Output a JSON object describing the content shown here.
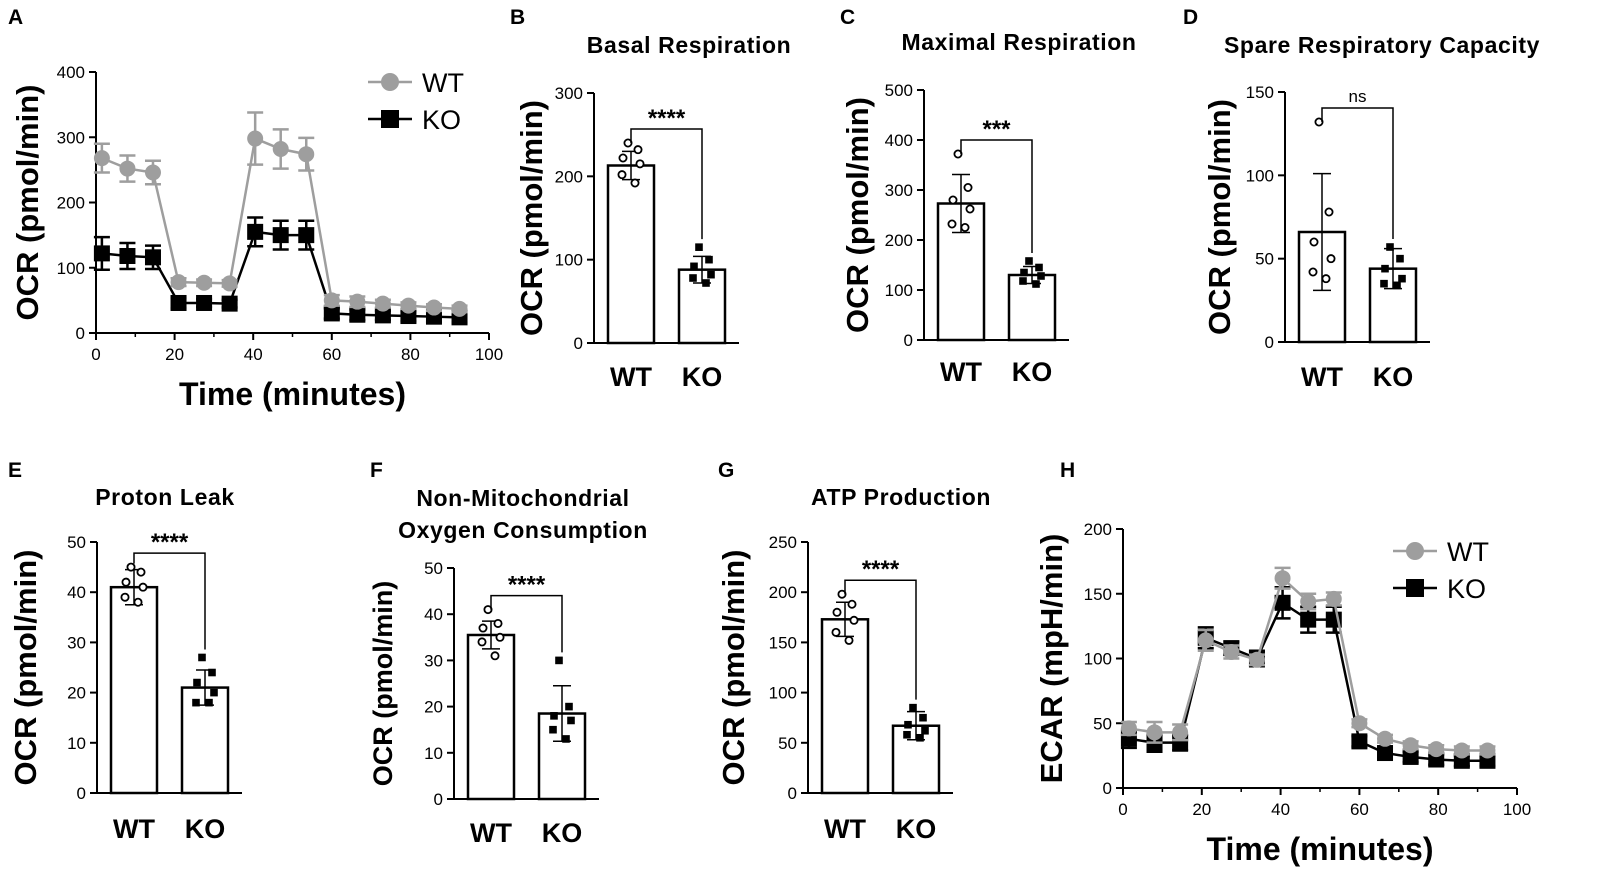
{
  "figure": {
    "colors": {
      "wt": "#9e9e9e",
      "ko": "#000000",
      "bar_fill": "#ffffff",
      "axis": "#000000"
    },
    "panels": {
      "A": "A",
      "B": "B",
      "C": "C",
      "D": "D",
      "E": "E",
      "F": "F",
      "G": "G",
      "H": "H"
    }
  },
  "chart_data": [
    {
      "id": "A",
      "type": "line",
      "title": "",
      "xlabel": "Time (minutes)",
      "ylabel": "OCR (pmol/min)",
      "xlim": [
        0,
        100
      ],
      "ylim": [
        0,
        400
      ],
      "xticks": [
        0,
        20,
        40,
        60,
        80,
        100
      ],
      "yticks": [
        0,
        100,
        200,
        300,
        400
      ],
      "legend": "top-right",
      "series": [
        {
          "name": "WT",
          "x": [
            1.5,
            8,
            14.5,
            21,
            27.5,
            34,
            40.5,
            47,
            53.5,
            60,
            66.5,
            73,
            79.5,
            86,
            92.5
          ],
          "y": [
            268,
            252,
            246,
            78,
            77,
            76,
            298,
            282,
            274,
            50,
            48,
            45,
            42,
            39,
            37
          ],
          "err": [
            22,
            20,
            18,
            6,
            5,
            5,
            40,
            30,
            25,
            8,
            8,
            6,
            5,
            5,
            5
          ]
        },
        {
          "name": "KO",
          "x": [
            1.5,
            8,
            14.5,
            21,
            27.5,
            34,
            40.5,
            47,
            53.5,
            60,
            66.5,
            73,
            79.5,
            86,
            92.5
          ],
          "y": [
            122,
            118,
            116,
            46,
            46,
            45,
            155,
            150,
            150,
            30,
            28,
            27,
            26,
            25,
            24
          ],
          "err": [
            25,
            20,
            18,
            8,
            6,
            6,
            22,
            22,
            22,
            8,
            8,
            7,
            8,
            8,
            8
          ]
        }
      ]
    },
    {
      "id": "B",
      "type": "bar",
      "title": "Basal Respiration",
      "ylabel": "OCR (pmol/min)",
      "ylim": [
        0,
        300
      ],
      "yticks": [
        0,
        100,
        200,
        300
      ],
      "categories": [
        "WT",
        "KO"
      ],
      "values": [
        213,
        88
      ],
      "errors": [
        17,
        16
      ],
      "points": [
        [
          240,
          232,
          222,
          215,
          202,
          192
        ],
        [
          115,
          100,
          92,
          82,
          78,
          72
        ]
      ],
      "significance": "****"
    },
    {
      "id": "C",
      "type": "bar",
      "title": "Maximal Respiration",
      "ylabel": "OCR (pmol/min)",
      "ylim": [
        0,
        500
      ],
      "yticks": [
        0,
        100,
        200,
        300,
        400,
        500
      ],
      "categories": [
        "WT",
        "KO"
      ],
      "values": [
        273,
        130
      ],
      "errors": [
        58,
        17
      ],
      "points": [
        [
          372,
          305,
          280,
          262,
          232,
          225
        ],
        [
          158,
          145,
          135,
          128,
          118,
          112
        ]
      ],
      "significance": "***"
    },
    {
      "id": "D",
      "type": "bar",
      "title": "Spare Respiratory Capacity",
      "ylabel": "OCR (pmol/min)",
      "ylim": [
        0,
        150
      ],
      "yticks": [
        0,
        50,
        100,
        150
      ],
      "categories": [
        "WT",
        "KO"
      ],
      "values": [
        66,
        44
      ],
      "errors": [
        35,
        12
      ],
      "points": [
        [
          132,
          78,
          60,
          50,
          42,
          38
        ],
        [
          57,
          50,
          44,
          38,
          35,
          34
        ]
      ],
      "significance": "ns"
    },
    {
      "id": "E",
      "type": "bar",
      "title": "Proton Leak",
      "ylabel": "OCR (pmol/min)",
      "ylim": [
        0,
        50
      ],
      "yticks": [
        0,
        10,
        20,
        30,
        40,
        50
      ],
      "categories": [
        "WT",
        "KO"
      ],
      "values": [
        41,
        21
      ],
      "errors": [
        3.5,
        3.5
      ],
      "points": [
        [
          45,
          44,
          42,
          41,
          39,
          38
        ],
        [
          27,
          24,
          22,
          20,
          18,
          18
        ]
      ],
      "significance": "****"
    },
    {
      "id": "F",
      "type": "bar",
      "title": "Non-Mitochondrial Oxygen Consumption",
      "title_lines": [
        "Non-Mitochondrial",
        "Oxygen Consumption"
      ],
      "ylabel": "OCR (pmol/min)",
      "ylim": [
        0,
        50
      ],
      "yticks": [
        0,
        10,
        20,
        30,
        40,
        50
      ],
      "categories": [
        "WT",
        "KO"
      ],
      "values": [
        35.5,
        18.5
      ],
      "errors": [
        3,
        6
      ],
      "points": [
        [
          41,
          38,
          37,
          35,
          34,
          31
        ],
        [
          30,
          20,
          18,
          17,
          15,
          13
        ]
      ],
      "significance": "****"
    },
    {
      "id": "G",
      "type": "bar",
      "title": "ATP Production",
      "ylabel": "OCR (pmol/min)",
      "ylim": [
        0,
        250
      ],
      "yticks": [
        0,
        50,
        100,
        150,
        200,
        250
      ],
      "categories": [
        "WT",
        "KO"
      ],
      "values": [
        173,
        67
      ],
      "errors": [
        17,
        14
      ],
      "points": [
        [
          198,
          188,
          180,
          172,
          160,
          152
        ],
        [
          85,
          75,
          68,
          62,
          58,
          55
        ]
      ],
      "significance": "****"
    },
    {
      "id": "H",
      "type": "line",
      "title": "",
      "xlabel": "Time (minutes)",
      "ylabel": "ECAR (mpH/min)",
      "xlim": [
        0,
        100
      ],
      "ylim": [
        0,
        200
      ],
      "xticks": [
        0,
        20,
        40,
        60,
        80,
        100
      ],
      "yticks": [
        0,
        50,
        100,
        150,
        200
      ],
      "legend": "top-right",
      "series": [
        {
          "name": "WT",
          "x": [
            1.5,
            8,
            14.5,
            21,
            27.5,
            34,
            40.5,
            47,
            53.5,
            60,
            66.5,
            73,
            79.5,
            86,
            92.5
          ],
          "y": [
            46,
            43,
            43,
            114,
            105,
            99,
            162,
            144,
            146,
            50,
            38,
            33,
            30,
            29,
            29
          ],
          "err": [
            5,
            8,
            6,
            8,
            5,
            4,
            8,
            6,
            5,
            3,
            3,
            3,
            3,
            3,
            3
          ]
        },
        {
          "name": "KO",
          "x": [
            1.5,
            8,
            14.5,
            21,
            27.5,
            34,
            40.5,
            47,
            53.5,
            60,
            66.5,
            73,
            79.5,
            86,
            92.5
          ],
          "y": [
            38,
            35,
            35,
            116,
            108,
            100,
            143,
            130,
            130,
            36,
            27,
            24,
            22,
            21,
            21
          ],
          "err": [
            7,
            7,
            6,
            8,
            5,
            6,
            12,
            10,
            10,
            4,
            4,
            4,
            4,
            4,
            4
          ]
        }
      ]
    }
  ]
}
